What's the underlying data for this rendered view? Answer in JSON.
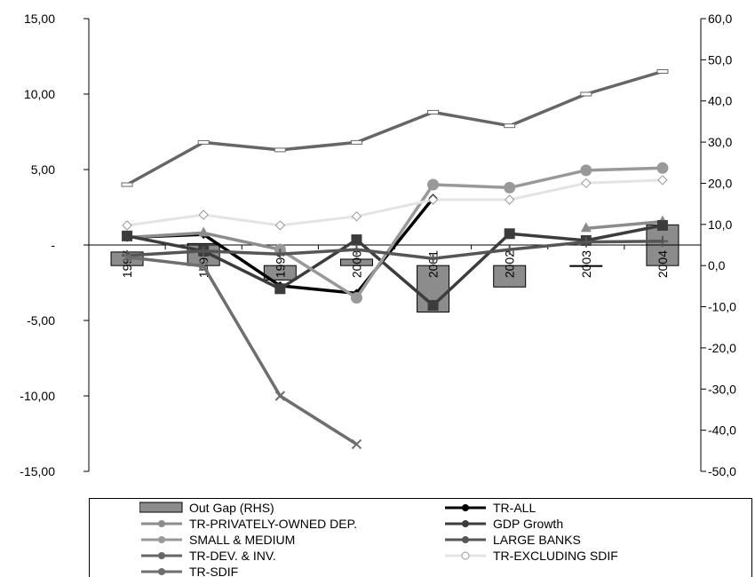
{
  "chart_data": {
    "type": "bar+line",
    "categories": [
      "1997",
      "1998",
      "1999",
      "2000",
      "2001",
      "2002",
      "2003",
      "2004"
    ],
    "left_axis": {
      "ylim": [
        -15,
        15
      ],
      "ticks": [
        15,
        10,
        5,
        0,
        -5,
        -10,
        -15
      ],
      "tick_labels": [
        "15,00",
        "10,00",
        "5,00",
        "-",
        "-5,00",
        "-10,00",
        "-15,00"
      ]
    },
    "right_axis": {
      "ylim": [
        -50,
        60
      ],
      "ticks": [
        60,
        50,
        40,
        30,
        20,
        10,
        0,
        -10,
        -20,
        -30,
        -40,
        -50
      ],
      "tick_labels": [
        "60,0",
        "50,0",
        "40,0",
        "30,0",
        "20,0",
        "10,0",
        "0,0",
        "-10,0",
        "-20,0",
        "-30,0",
        "-40,0",
        "-50,0"
      ]
    },
    "grid": false,
    "legend_position": "bottom",
    "series": [
      {
        "name": "Out Gap (RHS)",
        "kind": "bar",
        "axis": "right",
        "color": "#8c8c8c",
        "values": [
          3.3,
          5.35,
          -3.5,
          1.55,
          -11.3,
          -5.2,
          -0.2,
          9.9
        ]
      },
      {
        "name": "TR-ALL",
        "kind": "line",
        "axis": "left",
        "color": "#000000",
        "marker": "diamond",
        "values": [
          0.5,
          0.7,
          -2.7,
          -3.2,
          3.1,
          null,
          null,
          null
        ]
      },
      {
        "name": "TR-PRIVATELY-OWNED  DEP.",
        "kind": "line",
        "axis": "left",
        "color": "#8c8c8c",
        "marker": "triangle",
        "values": [
          0.5,
          0.8,
          -0.3,
          null,
          null,
          null,
          1.1,
          1.55
        ]
      },
      {
        "name": "GDP Growth",
        "kind": "line",
        "axis": "left",
        "color": "#3c3c3c",
        "marker": "square",
        "values": [
          0.6,
          -0.4,
          -2.9,
          0.35,
          -4.0,
          0.75,
          0.3,
          1.3
        ]
      },
      {
        "name": "SMALL & MEDIUM",
        "kind": "line",
        "axis": "left",
        "color": "#999999",
        "marker": "circle",
        "values": [
          null,
          null,
          -0.3,
          -3.5,
          4.0,
          3.8,
          4.95,
          5.1
        ]
      },
      {
        "name": "LARGE BANKS",
        "kind": "line",
        "axis": "left",
        "color": "#555555",
        "marker": "plus",
        "values": [
          -0.7,
          -0.4,
          -0.6,
          -0.3,
          -0.9,
          -0.3,
          0.2,
          0.25
        ]
      },
      {
        "name": "TR-DEV. & INV.",
        "kind": "line",
        "axis": "left",
        "color": "#666666",
        "marker": "dash",
        "values": [
          4.0,
          6.8,
          6.3,
          6.8,
          8.8,
          7.9,
          10.0,
          11.5
        ]
      },
      {
        "name": "TR-EXCLUDING SDIF",
        "kind": "line",
        "axis": "left",
        "color": "#e4e4e4",
        "marker": "diamond-open",
        "values": [
          1.3,
          2.0,
          1.3,
          1.9,
          3.0,
          3.0,
          4.1,
          4.3
        ]
      },
      {
        "name": "TR-SDIF",
        "kind": "line",
        "axis": "left",
        "color": "#6e6e6e",
        "marker": "x",
        "values": [
          -0.8,
          -1.4,
          -10.0,
          -13.2,
          null,
          null,
          null,
          null
        ]
      }
    ]
  }
}
